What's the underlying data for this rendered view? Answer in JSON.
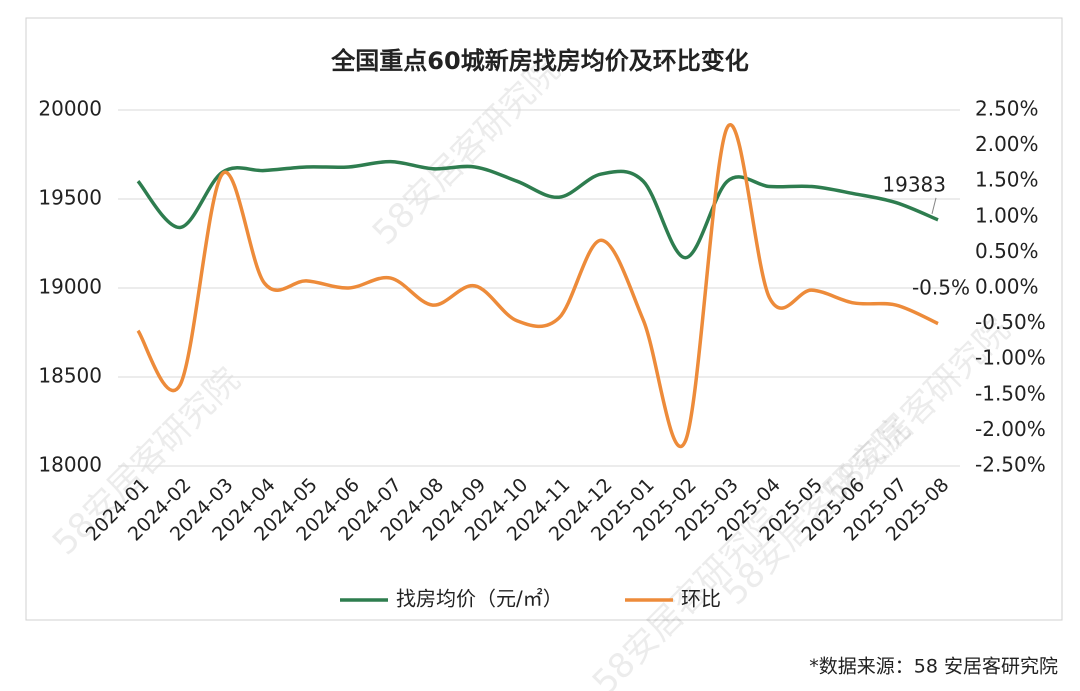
{
  "chart_data": {
    "type": "line",
    "title": "全国重点60城新房找房均价及环比变化",
    "categories": [
      "2024-01",
      "2024-02",
      "2024-03",
      "2024-04",
      "2024-05",
      "2024-06",
      "2024-07",
      "2024-08",
      "2024-09",
      "2024-10",
      "2024-11",
      "2024-12",
      "2025-01",
      "2025-02",
      "2025-03",
      "2025-04",
      "2025-05",
      "2025-06",
      "2025-07",
      "2025-08"
    ],
    "series": [
      {
        "name": "找房均价（元/㎡）",
        "color": "#2e7d4f",
        "values": [
          19600,
          19340,
          19650,
          19660,
          19680,
          19680,
          19710,
          19670,
          19680,
          19600,
          19510,
          19640,
          19600,
          19170,
          19600,
          19570,
          19570,
          19530,
          19480,
          19383
        ]
      },
      {
        "name": "环比",
        "color": "#ed8b3a",
        "axis": "y2",
        "values": [
          -0.6,
          -1.36,
          1.6,
          0.07,
          0.1,
          0.0,
          0.14,
          -0.24,
          0.03,
          -0.46,
          -0.42,
          0.67,
          -0.45,
          -2.15,
          2.26,
          -0.14,
          -0.03,
          -0.21,
          -0.24,
          -0.5
        ],
        "value_labels": [
          null,
          null,
          null,
          null,
          null,
          null,
          null,
          null,
          null,
          null,
          null,
          null,
          null,
          null,
          null,
          null,
          null,
          null,
          null,
          "-0.5%"
        ]
      }
    ],
    "ylim": [
      18000,
      20000
    ],
    "yticks": [
      18000,
      18500,
      19000,
      19500,
      20000
    ],
    "y2lim": [
      -2.5,
      2.5
    ],
    "y2ticks": [
      {
        "value": -2.5,
        "label": "-2.50%"
      },
      {
        "value": -2,
        "label": "-2.00%"
      },
      {
        "value": -1.5,
        "label": "-1.50%"
      },
      {
        "value": -1,
        "label": "-1.00%"
      },
      {
        "value": -0.5,
        "label": "-0.50%"
      },
      {
        "value": 0,
        "label": "0.00%"
      },
      {
        "value": 0.5,
        "label": "0.50%"
      },
      {
        "value": 1,
        "label": "1.00%"
      },
      {
        "value": 1.5,
        "label": "1.50%"
      },
      {
        "value": 2,
        "label": "2.00%"
      },
      {
        "value": 2.5,
        "label": "2.50%"
      }
    ],
    "grid": true,
    "legend": "bottom"
  },
  "watermark": "58安居客研究院",
  "source": "*数据来源：58 安居客研究院"
}
